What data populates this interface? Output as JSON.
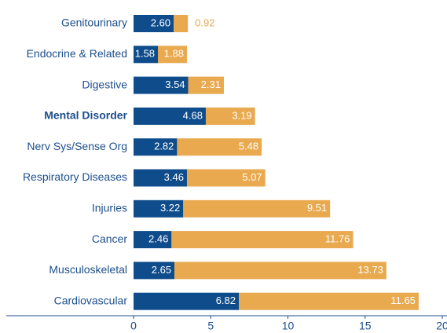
{
  "chart_data": {
    "type": "stacked_barh",
    "categories": [
      "Genitourinary",
      "Endocrine & Related",
      "Digestive",
      "Mental Disorder",
      "Nerv Sys/Sense Org",
      "Respiratory Diseases",
      "Injuries",
      "Cancer",
      "Musculoskeletal",
      "Cardiovascular"
    ],
    "series": [
      {
        "color": "#0f4c8c",
        "values": [
          2.6,
          1.58,
          3.54,
          4.68,
          2.82,
          3.46,
          3.22,
          2.46,
          2.65,
          6.82
        ],
        "value_labels": [
          "2.60",
          "1.58",
          "3.54",
          "4.68",
          "2.82",
          "3.46",
          "3.22",
          "2.46",
          "2.65",
          "6.82"
        ]
      },
      {
        "color": "#e9a94f",
        "values": [
          0.92,
          1.88,
          2.31,
          3.19,
          5.48,
          5.07,
          9.51,
          11.76,
          13.73,
          11.65
        ],
        "value_labels": [
          "0.92",
          "1.88",
          "2.31",
          "3.19",
          "5.48",
          "5.07",
          "9.51",
          "11.76",
          "13.73",
          "11.65"
        ]
      }
    ],
    "bold_categories": [
      3
    ],
    "xlim": [
      0,
      20
    ],
    "xticks": [
      0,
      5,
      10,
      15,
      20
    ]
  }
}
